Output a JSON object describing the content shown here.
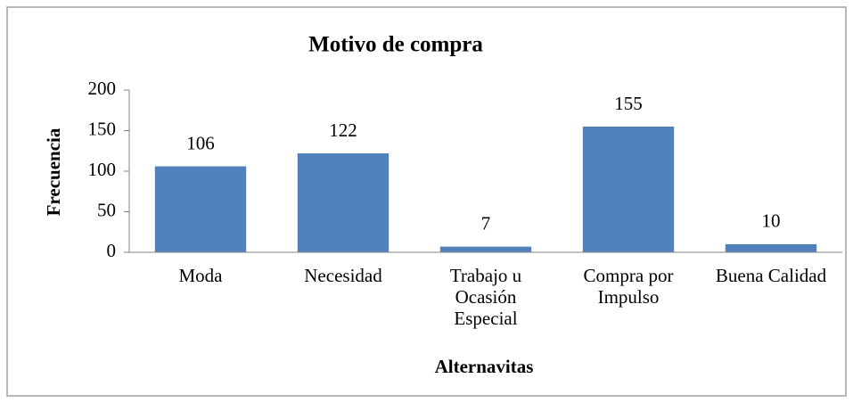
{
  "chart_data": {
    "type": "bar",
    "title": "Motivo de compra",
    "x_label": "Alternavitas",
    "y_label": "Frecuencia",
    "categories": [
      "Moda",
      "Necesidad",
      "Trabajo u Ocasión Especial",
      "Compra por Impulso",
      "Buena Calidad"
    ],
    "values": [
      106,
      122,
      7,
      155,
      10
    ],
    "color": "#4f81bd",
    "ylim": [
      0,
      200
    ],
    "yticks": [
      0,
      50,
      100,
      150,
      200
    ],
    "grid": false
  }
}
